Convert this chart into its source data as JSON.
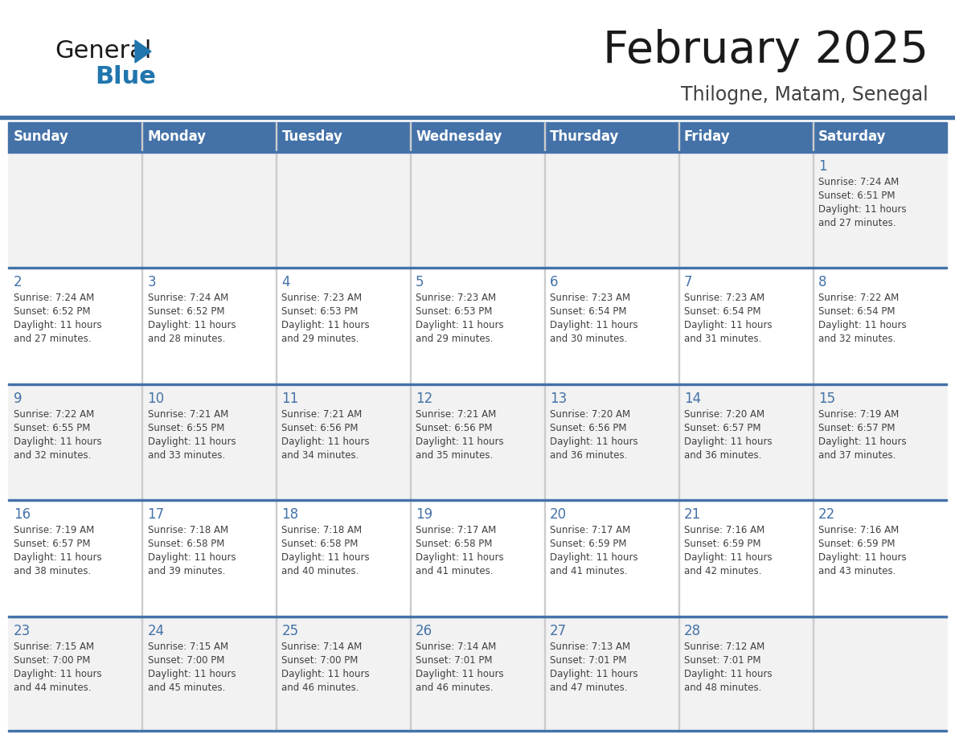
{
  "title": "February 2025",
  "subtitle": "Thilogne, Matam, Senegal",
  "header_bg": "#4472A8",
  "header_text_color": "#FFFFFF",
  "day_names": [
    "Sunday",
    "Monday",
    "Tuesday",
    "Wednesday",
    "Thursday",
    "Friday",
    "Saturday"
  ],
  "grid_line_color": "#4472A8",
  "row_bg_colors": [
    "#F2F2F2",
    "#FFFFFF",
    "#F2F2F2",
    "#FFFFFF",
    "#F2F2F2"
  ],
  "day_num_color": "#4472A8",
  "info_text_color": "#404040",
  "calendar_data": [
    [
      null,
      null,
      null,
      null,
      null,
      null,
      1
    ],
    [
      2,
      3,
      4,
      5,
      6,
      7,
      8
    ],
    [
      9,
      10,
      11,
      12,
      13,
      14,
      15
    ],
    [
      16,
      17,
      18,
      19,
      20,
      21,
      22
    ],
    [
      23,
      24,
      25,
      26,
      27,
      28,
      null
    ]
  ],
  "sun_data": {
    "1": {
      "sunrise": "7:24 AM",
      "sunset": "6:51 PM",
      "daylight_h": "11 hours",
      "daylight_m": "and 27 minutes."
    },
    "2": {
      "sunrise": "7:24 AM",
      "sunset": "6:52 PM",
      "daylight_h": "11 hours",
      "daylight_m": "and 27 minutes."
    },
    "3": {
      "sunrise": "7:24 AM",
      "sunset": "6:52 PM",
      "daylight_h": "11 hours",
      "daylight_m": "and 28 minutes."
    },
    "4": {
      "sunrise": "7:23 AM",
      "sunset": "6:53 PM",
      "daylight_h": "11 hours",
      "daylight_m": "and 29 minutes."
    },
    "5": {
      "sunrise": "7:23 AM",
      "sunset": "6:53 PM",
      "daylight_h": "11 hours",
      "daylight_m": "and 29 minutes."
    },
    "6": {
      "sunrise": "7:23 AM",
      "sunset": "6:54 PM",
      "daylight_h": "11 hours",
      "daylight_m": "and 30 minutes."
    },
    "7": {
      "sunrise": "7:23 AM",
      "sunset": "6:54 PM",
      "daylight_h": "11 hours",
      "daylight_m": "and 31 minutes."
    },
    "8": {
      "sunrise": "7:22 AM",
      "sunset": "6:54 PM",
      "daylight_h": "11 hours",
      "daylight_m": "and 32 minutes."
    },
    "9": {
      "sunrise": "7:22 AM",
      "sunset": "6:55 PM",
      "daylight_h": "11 hours",
      "daylight_m": "and 32 minutes."
    },
    "10": {
      "sunrise": "7:21 AM",
      "sunset": "6:55 PM",
      "daylight_h": "11 hours",
      "daylight_m": "and 33 minutes."
    },
    "11": {
      "sunrise": "7:21 AM",
      "sunset": "6:56 PM",
      "daylight_h": "11 hours",
      "daylight_m": "and 34 minutes."
    },
    "12": {
      "sunrise": "7:21 AM",
      "sunset": "6:56 PM",
      "daylight_h": "11 hours",
      "daylight_m": "and 35 minutes."
    },
    "13": {
      "sunrise": "7:20 AM",
      "sunset": "6:56 PM",
      "daylight_h": "11 hours",
      "daylight_m": "and 36 minutes."
    },
    "14": {
      "sunrise": "7:20 AM",
      "sunset": "6:57 PM",
      "daylight_h": "11 hours",
      "daylight_m": "and 36 minutes."
    },
    "15": {
      "sunrise": "7:19 AM",
      "sunset": "6:57 PM",
      "daylight_h": "11 hours",
      "daylight_m": "and 37 minutes."
    },
    "16": {
      "sunrise": "7:19 AM",
      "sunset": "6:57 PM",
      "daylight_h": "11 hours",
      "daylight_m": "and 38 minutes."
    },
    "17": {
      "sunrise": "7:18 AM",
      "sunset": "6:58 PM",
      "daylight_h": "11 hours",
      "daylight_m": "and 39 minutes."
    },
    "18": {
      "sunrise": "7:18 AM",
      "sunset": "6:58 PM",
      "daylight_h": "11 hours",
      "daylight_m": "and 40 minutes."
    },
    "19": {
      "sunrise": "7:17 AM",
      "sunset": "6:58 PM",
      "daylight_h": "11 hours",
      "daylight_m": "and 41 minutes."
    },
    "20": {
      "sunrise": "7:17 AM",
      "sunset": "6:59 PM",
      "daylight_h": "11 hours",
      "daylight_m": "and 41 minutes."
    },
    "21": {
      "sunrise": "7:16 AM",
      "sunset": "6:59 PM",
      "daylight_h": "11 hours",
      "daylight_m": "and 42 minutes."
    },
    "22": {
      "sunrise": "7:16 AM",
      "sunset": "6:59 PM",
      "daylight_h": "11 hours",
      "daylight_m": "and 43 minutes."
    },
    "23": {
      "sunrise": "7:15 AM",
      "sunset": "7:00 PM",
      "daylight_h": "11 hours",
      "daylight_m": "and 44 minutes."
    },
    "24": {
      "sunrise": "7:15 AM",
      "sunset": "7:00 PM",
      "daylight_h": "11 hours",
      "daylight_m": "and 45 minutes."
    },
    "25": {
      "sunrise": "7:14 AM",
      "sunset": "7:00 PM",
      "daylight_h": "11 hours",
      "daylight_m": "and 46 minutes."
    },
    "26": {
      "sunrise": "7:14 AM",
      "sunset": "7:01 PM",
      "daylight_h": "11 hours",
      "daylight_m": "and 46 minutes."
    },
    "27": {
      "sunrise": "7:13 AM",
      "sunset": "7:01 PM",
      "daylight_h": "11 hours",
      "daylight_m": "and 47 minutes."
    },
    "28": {
      "sunrise": "7:12 AM",
      "sunset": "7:01 PM",
      "daylight_h": "11 hours",
      "daylight_m": "and 48 minutes."
    }
  }
}
